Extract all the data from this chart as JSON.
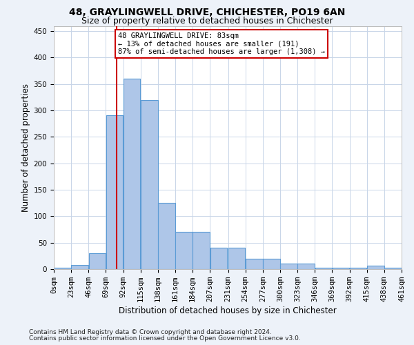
{
  "title": "48, GRAYLINGWELL DRIVE, CHICHESTER, PO19 6AN",
  "subtitle": "Size of property relative to detached houses in Chichester",
  "xlabel": "Distribution of detached houses by size in Chichester",
  "ylabel": "Number of detached properties",
  "bin_edges": [
    0,
    23,
    46,
    69,
    92,
    115,
    138,
    161,
    184,
    207,
    231,
    254,
    277,
    300,
    323,
    346,
    369,
    392,
    415,
    438,
    461
  ],
  "bin_labels": [
    "0sqm",
    "23sqm",
    "46sqm",
    "69sqm",
    "92sqm",
    "115sqm",
    "138sqm",
    "161sqm",
    "184sqm",
    "207sqm",
    "231sqm",
    "254sqm",
    "277sqm",
    "300sqm",
    "323sqm",
    "346sqm",
    "369sqm",
    "392sqm",
    "415sqm",
    "438sqm",
    "461sqm"
  ],
  "bar_heights": [
    2,
    8,
    30,
    291,
    360,
    320,
    125,
    70,
    70,
    40,
    40,
    20,
    20,
    10,
    10,
    3,
    3,
    3,
    7,
    3
  ],
  "bar_color": "#aec6e8",
  "bar_edge_color": "#5b9bd5",
  "vline_x": 83,
  "vline_color": "#cc0000",
  "annotation_line1": "48 GRAYLINGWELL DRIVE: 83sqm",
  "annotation_line2": "← 13% of detached houses are smaller (191)",
  "annotation_line3": "87% of semi-detached houses are larger (1,308) →",
  "annotation_box_color": "#ffffff",
  "annotation_box_edge": "#cc0000",
  "ylim": [
    0,
    460
  ],
  "yticks": [
    0,
    50,
    100,
    150,
    200,
    250,
    300,
    350,
    400,
    450
  ],
  "footnote1": "Contains HM Land Registry data © Crown copyright and database right 2024.",
  "footnote2": "Contains public sector information licensed under the Open Government Licence v3.0.",
  "bg_color": "#edf2f9",
  "plot_bg_color": "#ffffff",
  "grid_color": "#c8d5e8",
  "title_fontsize": 10,
  "subtitle_fontsize": 9,
  "label_fontsize": 8.5,
  "tick_fontsize": 7.5,
  "annotation_fontsize": 7.5,
  "footnote_fontsize": 6.5
}
